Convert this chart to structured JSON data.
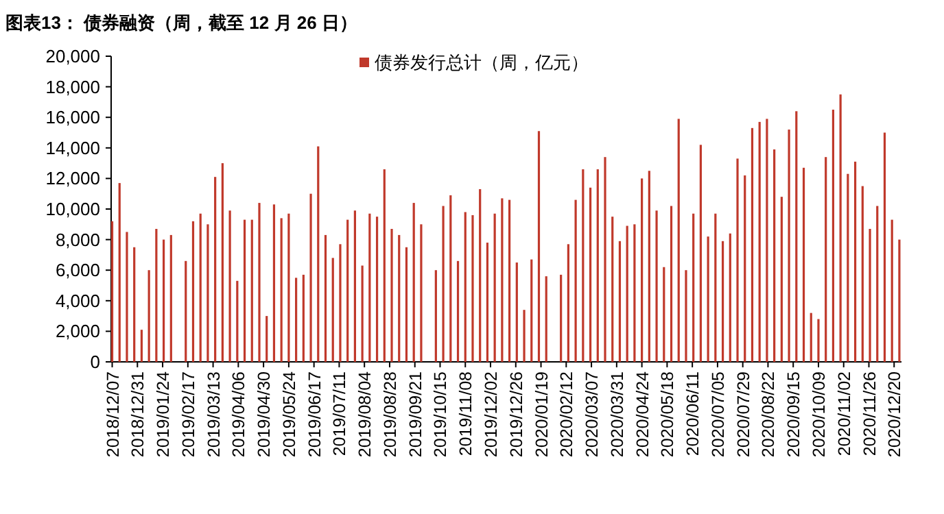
{
  "chart_data": {
    "type": "bar",
    "title": "图表13： 债券融资（周，截至 12 月 26 日）",
    "x": [
      "2018-12-07",
      "2018-12-14",
      "2018-12-21",
      "2018-12-28",
      "2019-01-04",
      "2019-01-11",
      "2019-01-18",
      "2019-01-25",
      "2019-02-01",
      "2019-02-08",
      "2019-02-15",
      "2019-02-22",
      "2019-03-01",
      "2019-03-08",
      "2019-03-15",
      "2019-03-22",
      "2019-03-29",
      "2019-04-05",
      "2019-04-12",
      "2019-04-19",
      "2019-04-26",
      "2019-05-03",
      "2019-05-10",
      "2019-05-17",
      "2019-05-24",
      "2019-05-31",
      "2019-06-07",
      "2019-06-14",
      "2019-06-21",
      "2019-06-28",
      "2019-07-05",
      "2019-07-12",
      "2019-07-19",
      "2019-07-26",
      "2019-08-02",
      "2019-08-09",
      "2019-08-16",
      "2019-08-23",
      "2019-08-30",
      "2019-09-06",
      "2019-09-13",
      "2019-09-20",
      "2019-09-27",
      "2019-10-04",
      "2019-10-11",
      "2019-10-18",
      "2019-10-25",
      "2019-11-01",
      "2019-11-08",
      "2019-11-15",
      "2019-11-22",
      "2019-11-29",
      "2019-12-06",
      "2019-12-13",
      "2019-12-20",
      "2019-12-27",
      "2020-01-03",
      "2020-01-10",
      "2020-01-17",
      "2020-01-24",
      "2020-01-31",
      "2020-02-07",
      "2020-02-14",
      "2020-02-21",
      "2020-02-28",
      "2020-03-06",
      "2020-03-13",
      "2020-03-20",
      "2020-03-27",
      "2020-04-03",
      "2020-04-10",
      "2020-04-17",
      "2020-04-24",
      "2020-05-01",
      "2020-05-08",
      "2020-05-15",
      "2020-05-22",
      "2020-05-29",
      "2020-06-05",
      "2020-06-12",
      "2020-06-19",
      "2020-06-26",
      "2020-07-03",
      "2020-07-10",
      "2020-07-17",
      "2020-07-24",
      "2020-07-31",
      "2020-08-07",
      "2020-08-14",
      "2020-08-21",
      "2020-08-28",
      "2020-09-04",
      "2020-09-11",
      "2020-09-18",
      "2020-09-25",
      "2020-10-02",
      "2020-10-09",
      "2020-10-16",
      "2020-10-23",
      "2020-10-30",
      "2020-11-06",
      "2020-11-13",
      "2020-11-20",
      "2020-11-27",
      "2020-12-04",
      "2020-12-11",
      "2020-12-18",
      "2020-12-25"
    ],
    "series": [
      {
        "name": "债券发行总计（周，亿元）",
        "color": "#c0392b",
        "values": [
          9200,
          11700,
          8500,
          7500,
          2100,
          6000,
          8700,
          8000,
          8300,
          null,
          6600,
          9200,
          9700,
          9000,
          12100,
          13000,
          9900,
          5300,
          9300,
          9300,
          10400,
          3000,
          10300,
          9400,
          9700,
          5500,
          5700,
          11000,
          14100,
          8300,
          6800,
          7700,
          9300,
          9900,
          6300,
          9700,
          9500,
          12600,
          8700,
          8300,
          7500,
          10400,
          9000,
          null,
          6000,
          10200,
          10900,
          6600,
          9800,
          9600,
          11300,
          7800,
          9700,
          10700,
          10600,
          6500,
          3400,
          6700,
          15100,
          5600,
          null,
          5700,
          7700,
          10600,
          12600,
          11400,
          12600,
          13400,
          9500,
          7900,
          8900,
          9000,
          12000,
          12500,
          9900,
          6200,
          10200,
          15900,
          6000,
          9700,
          14200,
          8200,
          9700,
          7900,
          8400,
          13300,
          12200,
          15300,
          15700,
          15900,
          13900,
          10800,
          15200,
          16400,
          12700,
          3200,
          2800,
          13400,
          16500,
          17500,
          12300,
          13100,
          11500,
          8700,
          10200,
          15000,
          9300,
          8000
        ]
      }
    ],
    "xlim": [
      "2018-12-06",
      "2020-12-27"
    ],
    "xticks": [
      {
        "value": "2018-12-07",
        "label": "2018/12/07"
      },
      {
        "value": "2018-12-31",
        "label": "2018/12/31"
      },
      {
        "value": "2019-01-24",
        "label": "2019/01/24"
      },
      {
        "value": "2019-02-17",
        "label": "2019/02/17"
      },
      {
        "value": "2019-03-13",
        "label": "2019/03/13"
      },
      {
        "value": "2019-04-06",
        "label": "2019/04/06"
      },
      {
        "value": "2019-04-30",
        "label": "2019/04/30"
      },
      {
        "value": "2019-05-24",
        "label": "2019/05/24"
      },
      {
        "value": "2019-06-17",
        "label": "2019/06/17"
      },
      {
        "value": "2019-07-11",
        "label": "2019/07/11"
      },
      {
        "value": "2019-08-04",
        "label": "2019/08/04"
      },
      {
        "value": "2019-08-28",
        "label": "2019/08/28"
      },
      {
        "value": "2019-09-21",
        "label": "2019/09/21"
      },
      {
        "value": "2019-10-15",
        "label": "2019/10/15"
      },
      {
        "value": "2019-11-08",
        "label": "2019/11/08"
      },
      {
        "value": "2019-12-02",
        "label": "2019/12/02"
      },
      {
        "value": "2019-12-26",
        "label": "2019/12/26"
      },
      {
        "value": "2020-01-19",
        "label": "2020/01/19"
      },
      {
        "value": "2020-02-12",
        "label": "2020/02/12"
      },
      {
        "value": "2020-03-07",
        "label": "2020/03/07"
      },
      {
        "value": "2020-03-31",
        "label": "2020/03/31"
      },
      {
        "value": "2020-04-24",
        "label": "2020/04/24"
      },
      {
        "value": "2020-05-18",
        "label": "2020/05/18"
      },
      {
        "value": "2020-06-11",
        "label": "2020/06/11"
      },
      {
        "value": "2020-07-05",
        "label": "2020/07/05"
      },
      {
        "value": "2020-07-29",
        "label": "2020/07/29"
      },
      {
        "value": "2020-08-22",
        "label": "2020/08/22"
      },
      {
        "value": "2020-09-15",
        "label": "2020/09/15"
      },
      {
        "value": "2020-10-09",
        "label": "2020/10/09"
      },
      {
        "value": "2020-11-02",
        "label": "2020/11/02"
      },
      {
        "value": "2020-11-26",
        "label": "2020/11/26"
      },
      {
        "value": "2020-12-20",
        "label": "2020/12/20"
      }
    ],
    "ylim": [
      0,
      20000
    ],
    "yticks": [
      0,
      {
        "value": 2000,
        "label": "2,000"
      },
      {
        "value": 4000,
        "label": "4,000"
      },
      {
        "value": 6000,
        "label": "6,000"
      },
      {
        "value": 8000,
        "label": "8,000"
      },
      {
        "value": 10000,
        "label": "10,000"
      },
      {
        "value": 12000,
        "label": "12,000"
      },
      {
        "value": 14000,
        "label": "14,000"
      },
      {
        "value": 16000,
        "label": "16,000"
      },
      {
        "value": 18000,
        "label": "18,000"
      },
      {
        "value": 20000,
        "label": "20,000"
      }
    ],
    "legend": "top"
  }
}
